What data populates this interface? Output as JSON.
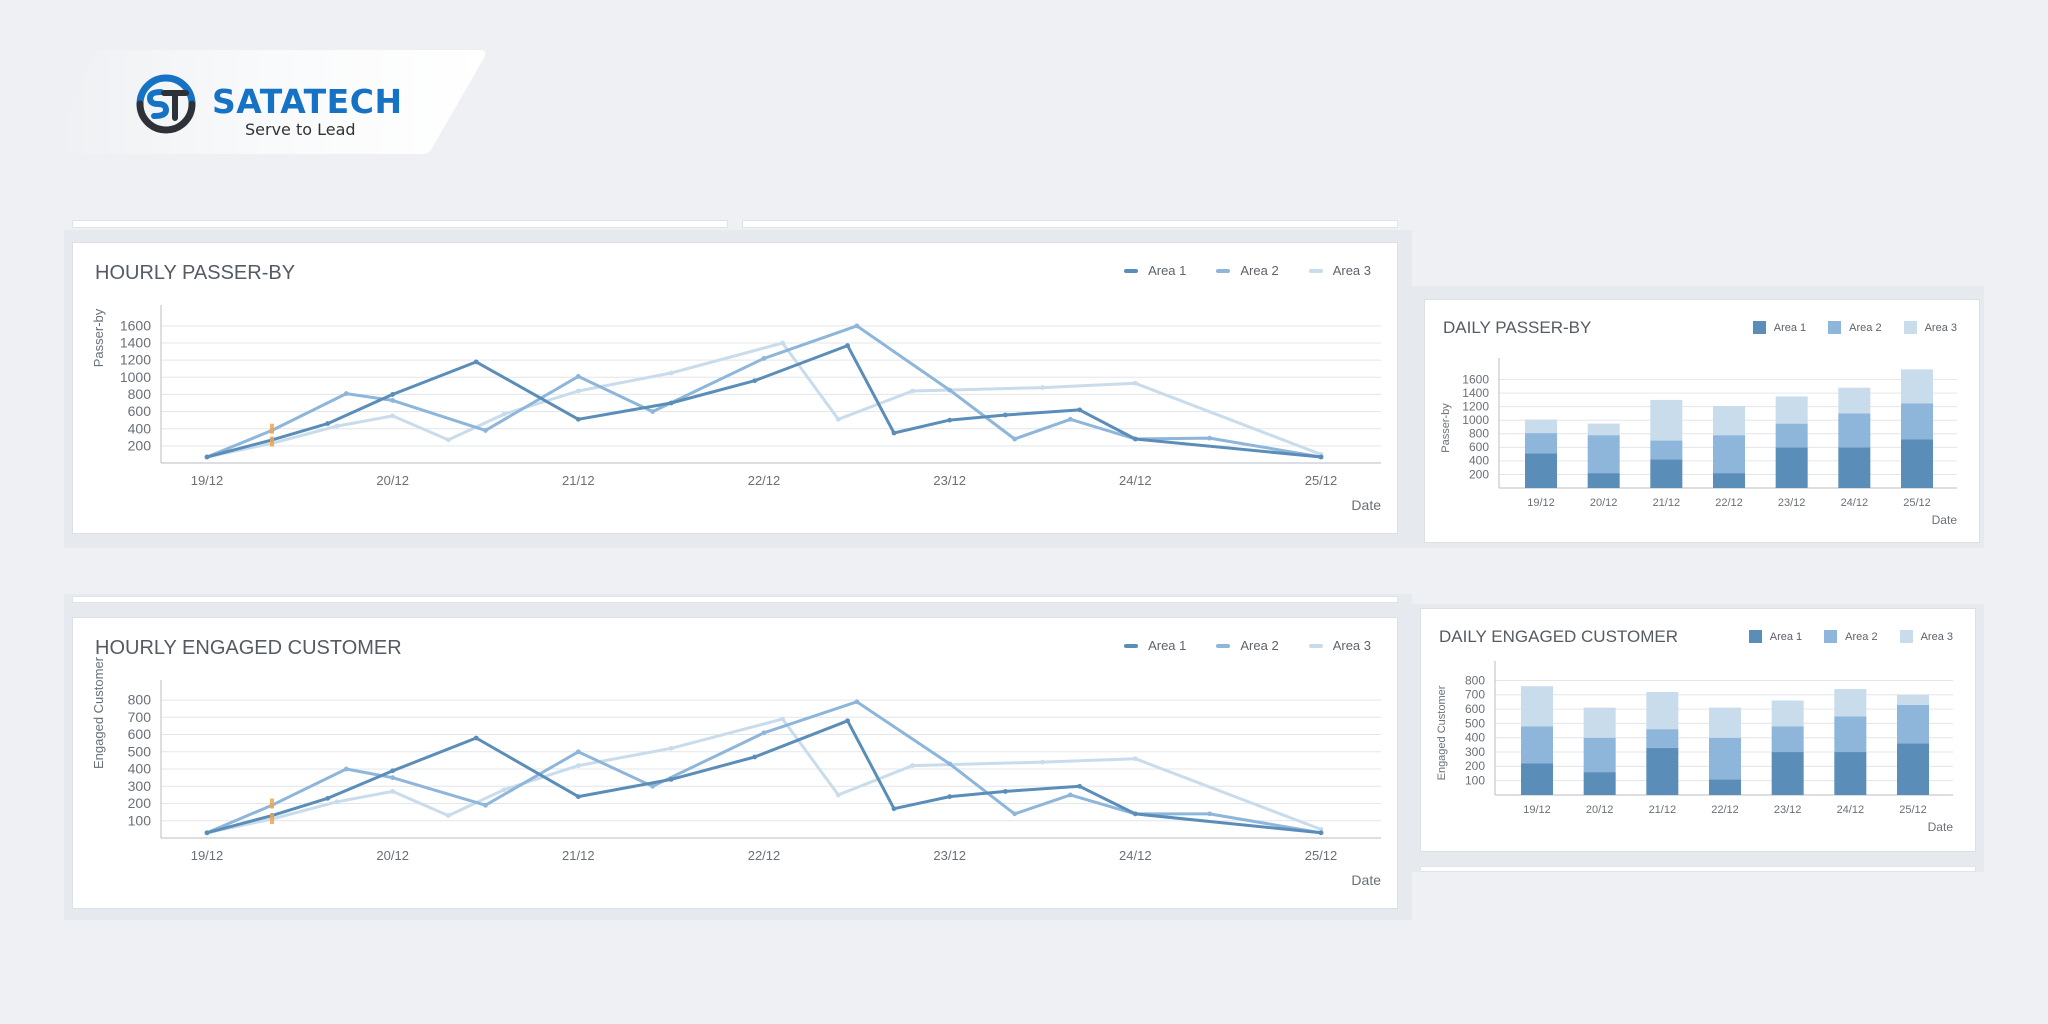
{
  "brand": {
    "name": "SATATECH",
    "tagline": "Serve to Lead",
    "logo_icon": "st-monogram-icon",
    "colors": {
      "blue": "#1672c4",
      "dark": "#2e3238"
    }
  },
  "colors": {
    "area1": "#5b8db9",
    "area2": "#8db6da",
    "area3": "#c9dcec",
    "grid": "#e3e6ea",
    "axis": "#b9bec5",
    "highlight": "#f0a64a"
  },
  "charts": {
    "hourly_passer_by": {
      "title": "HOURLY PASSER-BY",
      "legend": [
        "Area 1",
        "Area 2",
        "Area 3"
      ],
      "x_axis_label": "Date",
      "y_axis_label": "Passer-by"
    },
    "daily_passer_by": {
      "title": "DAILY PASSER-BY",
      "legend": [
        "Area 1",
        "Area 2",
        "Area 3"
      ],
      "x_axis_label": "Date",
      "y_axis_label": "Passer-by"
    },
    "hourly_engaged": {
      "title": "HOURLY ENGAGED CUSTOMER",
      "legend": [
        "Area 1",
        "Area 2",
        "Area 3"
      ],
      "x_axis_label": "Date",
      "y_axis_label": "Engaged Customer"
    },
    "daily_engaged": {
      "title": "DAILY ENGAGED CUSTOMER",
      "legend": [
        "Area 1",
        "Area 2",
        "Area 3"
      ],
      "x_axis_label": "Date",
      "y_axis_label": "Engaged Customer"
    }
  },
  "chart_data": [
    {
      "id": "hourly_passer_by",
      "type": "line",
      "title": "HOURLY PASSER-BY",
      "xlabel": "Date",
      "ylabel": "Passer-by",
      "categories": [
        "19/12",
        "20/12",
        "21/12",
        "22/12",
        "23/12",
        "24/12",
        "25/12"
      ],
      "ylim": [
        0,
        1750
      ],
      "yticks": [
        200,
        400,
        600,
        800,
        1000,
        1200,
        1400,
        1600
      ],
      "grid": true,
      "legend_position": "top-right",
      "series": [
        {
          "name": "Area 1",
          "x": [
            0,
            0.35,
            0.65,
            1.0,
            1.45,
            2.0,
            2.5,
            2.95,
            3.45,
            3.7,
            4.0,
            4.3,
            4.7,
            5.0,
            6.0
          ],
          "y": [
            70,
            270,
            460,
            800,
            1180,
            510,
            700,
            960,
            1370,
            350,
            500,
            560,
            620,
            280,
            70
          ]
        },
        {
          "name": "Area 2",
          "x": [
            0,
            0.35,
            0.75,
            1.0,
            1.5,
            2.0,
            2.4,
            3.0,
            3.5,
            4.0,
            4.35,
            4.65,
            5.0,
            5.4,
            6.0
          ],
          "y": [
            70,
            380,
            810,
            730,
            380,
            1010,
            600,
            1220,
            1600,
            850,
            280,
            510,
            280,
            290,
            70
          ]
        },
        {
          "name": "Area 3",
          "x": [
            0,
            0.35,
            0.7,
            1.0,
            1.3,
            1.6,
            2.0,
            2.5,
            3.1,
            3.4,
            3.8,
            4.5,
            5.0,
            6.0
          ],
          "y": [
            70,
            230,
            430,
            550,
            270,
            570,
            840,
            1050,
            1400,
            510,
            840,
            880,
            930,
            100
          ]
        }
      ],
      "highlights": [
        {
          "x": 0.35,
          "y": [
            250,
            400
          ]
        }
      ]
    },
    {
      "id": "hourly_engaged",
      "type": "line",
      "title": "HOURLY ENGAGED CUSTOMER",
      "xlabel": "Date",
      "ylabel": "Engaged Customer",
      "categories": [
        "19/12",
        "20/12",
        "21/12",
        "22/12",
        "23/12",
        "24/12",
        "25/12"
      ],
      "ylim": [
        0,
        870
      ],
      "yticks": [
        100,
        200,
        300,
        400,
        500,
        600,
        700,
        800
      ],
      "grid": true,
      "legend_position": "top-right",
      "series": [
        {
          "name": "Area 1",
          "x": [
            0,
            0.35,
            0.65,
            1.0,
            1.45,
            2.0,
            2.5,
            2.95,
            3.45,
            3.7,
            4.0,
            4.3,
            4.7,
            5.0,
            6.0
          ],
          "y": [
            30,
            130,
            230,
            390,
            580,
            240,
            340,
            470,
            680,
            170,
            240,
            270,
            300,
            140,
            30
          ]
        },
        {
          "name": "Area 2",
          "x": [
            0,
            0.35,
            0.75,
            1.0,
            1.5,
            2.0,
            2.4,
            3.0,
            3.5,
            4.0,
            4.35,
            4.65,
            5.0,
            5.4,
            6.0
          ],
          "y": [
            30,
            190,
            400,
            350,
            190,
            500,
            300,
            610,
            790,
            430,
            140,
            250,
            140,
            140,
            30
          ]
        },
        {
          "name": "Area 3",
          "x": [
            0,
            0.35,
            0.7,
            1.0,
            1.3,
            1.6,
            2.0,
            2.5,
            3.1,
            3.4,
            3.8,
            4.5,
            5.0,
            6.0
          ],
          "y": [
            30,
            110,
            210,
            270,
            130,
            280,
            420,
            520,
            690,
            250,
            420,
            440,
            460,
            50
          ]
        }
      ],
      "highlights": [
        {
          "x": 0.35,
          "y": [
            110,
            200
          ]
        }
      ]
    },
    {
      "id": "daily_passer_by",
      "type": "bar",
      "stacked": true,
      "title": "DAILY PASSER-BY",
      "xlabel": "Date",
      "ylabel": "Passer-by",
      "categories": [
        "19/12",
        "20/12",
        "21/12",
        "22/12",
        "23/12",
        "24/12",
        "25/12"
      ],
      "ylim": [
        0,
        1800
      ],
      "yticks": [
        200,
        400,
        600,
        800,
        1000,
        1200,
        1400,
        1600
      ],
      "grid": true,
      "legend_position": "top-right",
      "series": [
        {
          "name": "Area 1",
          "values": [
            510,
            220,
            420,
            220,
            600,
            600,
            720
          ]
        },
        {
          "name": "Area 2",
          "values": [
            300,
            560,
            280,
            560,
            350,
            500,
            530
          ]
        },
        {
          "name": "Area 3",
          "values": [
            200,
            170,
            600,
            430,
            400,
            380,
            500
          ]
        }
      ]
    },
    {
      "id": "daily_engaged",
      "type": "bar",
      "stacked": true,
      "title": "DAILY ENGAGED CUSTOMER",
      "xlabel": "Date",
      "ylabel": "Engaged Customer",
      "categories": [
        "19/12",
        "20/12",
        "21/12",
        "22/12",
        "23/12",
        "24/12",
        "25/12"
      ],
      "ylim": [
        0,
        880
      ],
      "yticks": [
        100,
        200,
        300,
        400,
        500,
        600,
        700,
        800
      ],
      "grid": true,
      "legend_position": "top-right",
      "series": [
        {
          "name": "Area 1",
          "values": [
            220,
            160,
            330,
            110,
            300,
            300,
            360
          ]
        },
        {
          "name": "Area 2",
          "values": [
            260,
            240,
            130,
            290,
            180,
            250,
            270
          ]
        },
        {
          "name": "Area 3",
          "values": [
            280,
            210,
            260,
            210,
            180,
            190,
            70
          ]
        }
      ]
    }
  ]
}
